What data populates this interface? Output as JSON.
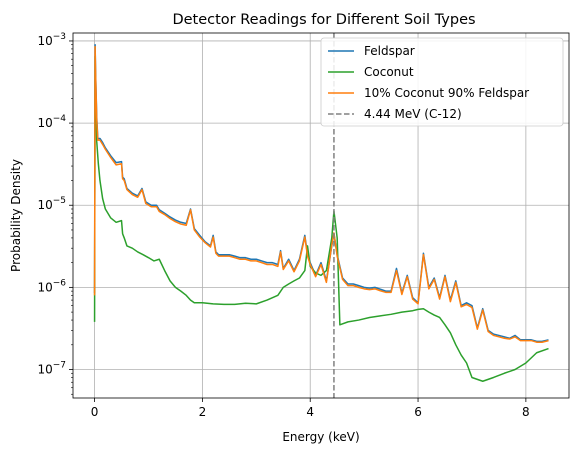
{
  "chart_data": {
    "type": "line",
    "title": "Detector Readings for Different Soil Types",
    "xlabel": "Energy (keV)",
    "ylabel": "Probability Density",
    "xlim": [
      -0.4,
      8.8
    ],
    "ylim": [
      4.5e-08,
      0.00125
    ],
    "yscale": "log",
    "grid": true,
    "legend_position": "upper right",
    "x_ticks": [
      {
        "value": 0,
        "label": "0"
      },
      {
        "value": 2,
        "label": "2"
      },
      {
        "value": 4,
        "label": "4"
      },
      {
        "value": 6,
        "label": "6"
      },
      {
        "value": 8,
        "label": "8"
      }
    ],
    "y_ticks": [
      {
        "value": 1e-07,
        "base": "10",
        "exp": "−7"
      },
      {
        "value": 1e-06,
        "base": "10",
        "exp": "−6"
      },
      {
        "value": 1e-05,
        "base": "10",
        "exp": "−5"
      },
      {
        "value": 0.0001,
        "base": "10",
        "exp": "−4"
      },
      {
        "value": 0.001,
        "base": "10",
        "exp": "−3"
      }
    ],
    "series": [
      {
        "name": "Feldspar",
        "color": "#1f77b4",
        "x": [
          0,
          0.01,
          0.02,
          0.04,
          0.06,
          0.1,
          0.15,
          0.2,
          0.3,
          0.4,
          0.5,
          0.52,
          0.55,
          0.6,
          0.7,
          0.8,
          0.88,
          0.95,
          1.05,
          1.15,
          1.2,
          1.3,
          1.4,
          1.5,
          1.6,
          1.7,
          1.78,
          1.85,
          1.95,
          2.05,
          2.15,
          2.2,
          2.25,
          2.3,
          2.4,
          2.5,
          2.6,
          2.7,
          2.8,
          2.9,
          3.0,
          3.1,
          3.2,
          3.3,
          3.4,
          3.45,
          3.5,
          3.6,
          3.7,
          3.8,
          3.9,
          3.95,
          4.0,
          4.1,
          4.2,
          4.3,
          4.4,
          4.44,
          4.5,
          4.6,
          4.7,
          4.8,
          4.9,
          5.0,
          5.1,
          5.2,
          5.3,
          5.4,
          5.5,
          5.6,
          5.7,
          5.8,
          5.9,
          6.0,
          6.1,
          6.2,
          6.3,
          6.4,
          6.5,
          6.6,
          6.7,
          6.8,
          6.9,
          7.0,
          7.1,
          7.2,
          7.3,
          7.4,
          7.5,
          7.6,
          7.7,
          7.8,
          7.9,
          8.0,
          8.1,
          8.2,
          8.3,
          8.42
        ],
        "y": [
          8.5e-07,
          0.0009,
          0.0004,
          0.00012,
          6.5e-05,
          6.5e-05,
          5.8e-05,
          5e-05,
          4e-05,
          3.3e-05,
          3.4e-05,
          2.2e-05,
          2.1e-05,
          1.6e-05,
          1.4e-05,
          1.3e-05,
          1.6e-05,
          1.1e-05,
          1e-05,
          1e-05,
          8.8e-06,
          8e-06,
          7.2e-06,
          6.6e-06,
          6.2e-06,
          6e-06,
          9e-06,
          5.2e-06,
          4.3e-06,
          3.6e-06,
          3.2e-06,
          4.3e-06,
          2.7e-06,
          2.5e-06,
          2.5e-06,
          2.5e-06,
          2.4e-06,
          2.3e-06,
          2.3e-06,
          2.2e-06,
          2.2e-06,
          2.1e-06,
          2e-06,
          2e-06,
          1.9e-06,
          2.8e-06,
          1.7e-06,
          2.2e-06,
          1.6e-06,
          2.2e-06,
          4.3e-06,
          2.5e-06,
          2e-06,
          1.4e-06,
          2e-06,
          1.2e-06,
          3.2e-06,
          4.5e-06,
          2.5e-06,
          1.3e-06,
          1.1e-06,
          1.1e-06,
          1.05e-06,
          1e-06,
          9.8e-07,
          1e-06,
          9.5e-07,
          9e-07,
          9e-07,
          1.7e-06,
          8.5e-07,
          1.4e-06,
          7.5e-07,
          6.5e-07,
          2.6e-06,
          1e-06,
          1.3e-06,
          7.5e-07,
          1.4e-06,
          7e-07,
          1.2e-06,
          6e-07,
          6.5e-07,
          6e-07,
          3.2e-07,
          5.5e-07,
          3e-07,
          2.7e-07,
          2.6e-07,
          2.5e-07,
          2.4e-07,
          2.6e-07,
          2.3e-07,
          2.3e-07,
          2.3e-07,
          2.2e-07,
          2.2e-07,
          2.3e-07
        ]
      },
      {
        "name": "Coconut",
        "color": "#2ca02c",
        "x": [
          0,
          0.01,
          0.02,
          0.04,
          0.07,
          0.1,
          0.15,
          0.2,
          0.3,
          0.4,
          0.5,
          0.52,
          0.55,
          0.6,
          0.7,
          0.8,
          0.9,
          1.0,
          1.1,
          1.2,
          1.3,
          1.4,
          1.5,
          1.6,
          1.7,
          1.78,
          1.85,
          2.0,
          2.2,
          2.4,
          2.6,
          2.8,
          3.0,
          3.2,
          3.4,
          3.5,
          3.6,
          3.7,
          3.8,
          3.9,
          3.95,
          4.0,
          4.1,
          4.2,
          4.3,
          4.4,
          4.44,
          4.5,
          4.55,
          4.7,
          4.9,
          5.1,
          5.3,
          5.5,
          5.7,
          5.9,
          6.0,
          6.1,
          6.2,
          6.3,
          6.4,
          6.5,
          6.6,
          6.7,
          6.8,
          6.9,
          7.0,
          7.2,
          7.4,
          7.6,
          7.8,
          8.0,
          8.2,
          8.42
        ],
        "y": [
          3.8e-07,
          0.00065,
          0.0002,
          6e-05,
          3.2e-05,
          2e-05,
          1.2e-05,
          9e-06,
          7e-06,
          6.2e-06,
          6.5e-06,
          4.5e-06,
          4e-06,
          3.2e-06,
          3e-06,
          2.7e-06,
          2.5e-06,
          2.3e-06,
          2.1e-06,
          2.2e-06,
          1.6e-06,
          1.2e-06,
          1e-06,
          9e-07,
          8e-07,
          7e-07,
          6.5e-07,
          6.5e-07,
          6.3e-07,
          6.2e-07,
          6.2e-07,
          6.4e-07,
          6.3e-07,
          7e-07,
          8e-07,
          1e-06,
          1.1e-06,
          1.2e-06,
          1.3e-06,
          1.6e-06,
          3.2e-06,
          1.8e-06,
          1.5e-06,
          1.4e-06,
          1.6e-06,
          4e-06,
          8.5e-06,
          4e-06,
          3.5e-07,
          3.8e-07,
          4e-07,
          4.3e-07,
          4.5e-07,
          4.7e-07,
          5e-07,
          5.2e-07,
          5.4e-07,
          5.5e-07,
          5e-07,
          4.6e-07,
          4.3e-07,
          3.5e-07,
          2.8e-07,
          2e-07,
          1.5e-07,
          1.2e-07,
          8e-08,
          7.2e-08,
          8e-08,
          9e-08,
          1e-07,
          1.2e-07,
          1.6e-07,
          1.8e-07
        ]
      },
      {
        "name": "10% Coconut 90% Feldspar",
        "color": "#ff7f0e",
        "x": [
          0,
          0.01,
          0.02,
          0.04,
          0.06,
          0.1,
          0.15,
          0.2,
          0.3,
          0.4,
          0.5,
          0.52,
          0.55,
          0.6,
          0.7,
          0.8,
          0.88,
          0.95,
          1.05,
          1.15,
          1.2,
          1.3,
          1.4,
          1.5,
          1.6,
          1.7,
          1.78,
          1.85,
          1.95,
          2.05,
          2.15,
          2.2,
          2.25,
          2.3,
          2.4,
          2.5,
          2.6,
          2.7,
          2.8,
          2.9,
          3.0,
          3.1,
          3.2,
          3.3,
          3.4,
          3.45,
          3.5,
          3.6,
          3.7,
          3.8,
          3.9,
          3.95,
          4.0,
          4.1,
          4.2,
          4.3,
          4.4,
          4.44,
          4.5,
          4.6,
          4.7,
          4.8,
          4.9,
          5.0,
          5.1,
          5.2,
          5.3,
          5.4,
          5.5,
          5.6,
          5.7,
          5.8,
          5.9,
          6.0,
          6.1,
          6.2,
          6.3,
          6.4,
          6.5,
          6.6,
          6.7,
          6.8,
          6.9,
          7.0,
          7.1,
          7.2,
          7.3,
          7.4,
          7.5,
          7.6,
          7.7,
          7.8,
          7.9,
          8.0,
          8.1,
          8.2,
          8.3,
          8.42
        ],
        "y": [
          8e-07,
          0.00085,
          0.00038,
          0.00011,
          6.2e-05,
          6.2e-05,
          5.5e-05,
          4.8e-05,
          3.8e-05,
          3.1e-05,
          3.2e-05,
          2.1e-05,
          2e-05,
          1.55e-05,
          1.35e-05,
          1.25e-05,
          1.55e-05,
          1.05e-05,
          9.6e-06,
          9.6e-06,
          8.4e-06,
          7.7e-06,
          6.9e-06,
          6.3e-06,
          5.9e-06,
          5.7e-06,
          8.8e-06,
          5e-06,
          4.1e-06,
          3.5e-06,
          3.1e-06,
          4.1e-06,
          2.6e-06,
          2.4e-06,
          2.4e-06,
          2.4e-06,
          2.3e-06,
          2.2e-06,
          2.2e-06,
          2.1e-06,
          2.1e-06,
          2e-06,
          1.9e-06,
          1.9e-06,
          1.8e-06,
          2.7e-06,
          1.65e-06,
          2.1e-06,
          1.55e-06,
          2.1e-06,
          4.1e-06,
          2.4e-06,
          1.9e-06,
          1.35e-06,
          1.9e-06,
          1.15e-06,
          3.3e-06,
          4.6e-06,
          2.4e-06,
          1.25e-06,
          1.05e-06,
          1.05e-06,
          1e-06,
          9.6e-07,
          9.4e-07,
          9.6e-07,
          9.1e-07,
          8.7e-07,
          8.7e-07,
          1.6e-06,
          8.2e-07,
          1.35e-06,
          7.2e-07,
          6.3e-07,
          2.5e-06,
          9.6e-07,
          1.25e-06,
          7.2e-07,
          1.35e-06,
          6.7e-07,
          1.15e-06,
          5.8e-07,
          6.2e-07,
          5.7e-07,
          3.1e-07,
          5.3e-07,
          2.9e-07,
          2.6e-07,
          2.5e-07,
          2.4e-07,
          2.35e-07,
          2.5e-07,
          2.25e-07,
          2.25e-07,
          2.25e-07,
          2.15e-07,
          2.15e-07,
          2.25e-07
        ]
      }
    ],
    "reference_line": {
      "name": "4.44 MeV (C-12)",
      "x": 4.44,
      "color": "#808080",
      "style": "dashed"
    }
  }
}
